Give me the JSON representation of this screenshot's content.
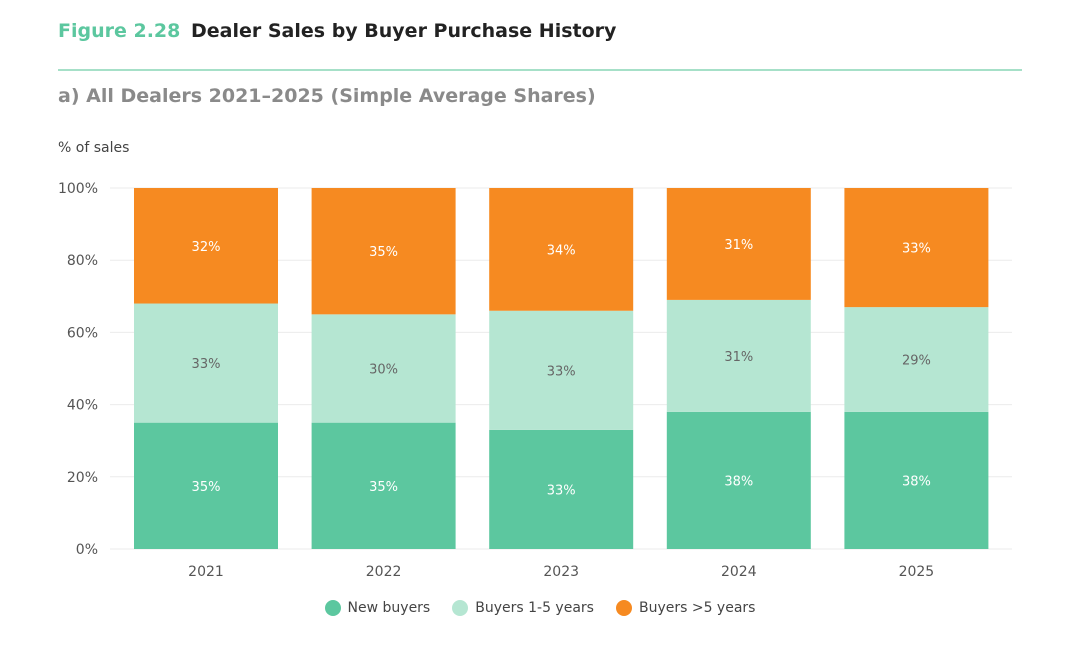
{
  "figure": {
    "label": "Figure 2.28",
    "title": "Dealer Sales by Buyer Purchase History",
    "subtitle": "a) All Dealers 2021–2025 (Simple Average Shares)"
  },
  "chart_data": {
    "type": "bar",
    "stacked": true,
    "ylabel": "% of sales",
    "xlabel": "",
    "ylim": [
      0,
      100
    ],
    "yticks": [
      "0%",
      "20%",
      "40%",
      "60%",
      "80%",
      "100%"
    ],
    "grid": true,
    "legend_position": "bottom",
    "categories": [
      "2021",
      "2022",
      "2023",
      "2024",
      "2025"
    ],
    "series": [
      {
        "name": "New buyers",
        "color": "#5cc79f",
        "label_color": "#ffffff",
        "values": [
          35,
          35,
          33,
          38,
          38
        ]
      },
      {
        "name": "Buyers 1-5 years",
        "color": "#b5e6d2",
        "label_color": "#666666",
        "values": [
          33,
          30,
          33,
          31,
          29
        ]
      },
      {
        "name": "Buyers >5 years",
        "color": "#f68a21",
        "label_color": "#ffffff",
        "values": [
          32,
          35,
          34,
          31,
          33
        ]
      }
    ],
    "data_label_suffix": "%"
  }
}
